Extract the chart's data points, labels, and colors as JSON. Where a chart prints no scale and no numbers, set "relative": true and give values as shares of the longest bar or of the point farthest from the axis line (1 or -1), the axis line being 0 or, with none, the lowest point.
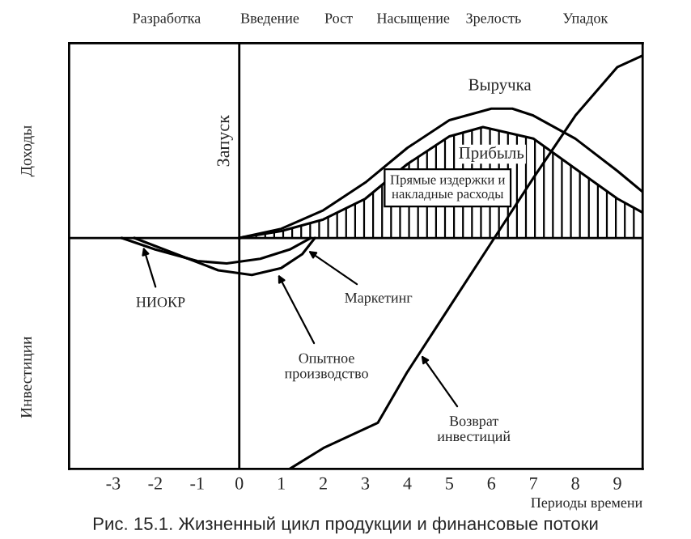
{
  "chart_data": {
    "type": "line",
    "relative": true,
    "title": "Рис. 15.1. Жизненный цикл продукции и финансовые потоки",
    "xlabel": "Периоды времени",
    "ylabel": "Доходы",
    "xlim": [
      -4.05,
      9.6
    ],
    "xticks": [
      -3,
      -2,
      -1,
      0,
      1,
      2,
      3,
      4,
      5,
      6,
      7,
      8,
      9
    ],
    "tick_labels": "x",
    "marker": "none",
    "line_style": "solid",
    "ref_lines": [
      {
        "axis": "x",
        "value": 0,
        "label": "Запуск",
        "color": "#000000"
      }
    ],
    "series": [
      {
        "color": "#000000",
        "x": [
          0,
          1,
          2,
          3,
          4,
          5,
          6,
          6.5,
          7,
          8,
          9,
          9.6
        ],
        "values": [
          0,
          0.04,
          0.12,
          0.24,
          0.39,
          0.51,
          0.56,
          0.56,
          0.53,
          0.43,
          0.29,
          0.2
        ]
      },
      {
        "type": "area",
        "color": "#000000",
        "x": [
          0,
          1,
          2,
          3,
          4,
          5,
          5.8,
          7,
          8,
          9,
          9.6
        ],
        "values": [
          0,
          0.03,
          0.08,
          0.17,
          0.32,
          0.44,
          0.48,
          0.43,
          0.3,
          0.17,
          0.11
        ]
      },
      {
        "color": "#000000",
        "x": [
          -2.8,
          -2,
          -1,
          -0.3,
          0.5,
          1.2,
          1.7
        ],
        "values": [
          0,
          -0.05,
          -0.1,
          -0.11,
          -0.09,
          -0.05,
          0
        ]
      },
      {
        "color": "#000000",
        "x": [
          -2.5,
          -1.5,
          -0.5,
          0.3,
          1,
          1.5,
          1.8
        ],
        "values": [
          0,
          -0.07,
          -0.14,
          -0.16,
          -0.13,
          -0.07,
          0
        ]
      },
      {
        "color": "#000000",
        "x": [
          1.2,
          2,
          3.3,
          4,
          5,
          6,
          7,
          8,
          9,
          9.6
        ],
        "values": [
          -1.0,
          -0.91,
          -0.8,
          -0.58,
          -0.3,
          -0.02,
          0.26,
          0.53,
          0.74,
          0.79
        ]
      }
    ],
    "annotations": [
      {
        "text": "Выручка",
        "x": 6.2,
        "y": 0.56
      },
      {
        "text": "Прибыль",
        "x": 6.0,
        "y": 0.48
      },
      {
        "text": "НИОКР",
        "x": -2.3,
        "y": -0.03
      },
      {
        "text": "Маркетинг",
        "x": 1.6,
        "y": -0.05
      },
      {
        "text": "Опытное\nпроизводство",
        "x": 0.9,
        "y": -0.15
      },
      {
        "text": "Возврат\nинвестиций",
        "x": 4.3,
        "y": -0.5
      },
      "Прямые издержки и\nнакладные расходы",
      "Инвестиции",
      "Разработка",
      "Введение",
      "Рост",
      "Насыщение",
      "Зрелость",
      "Упадок"
    ]
  }
}
